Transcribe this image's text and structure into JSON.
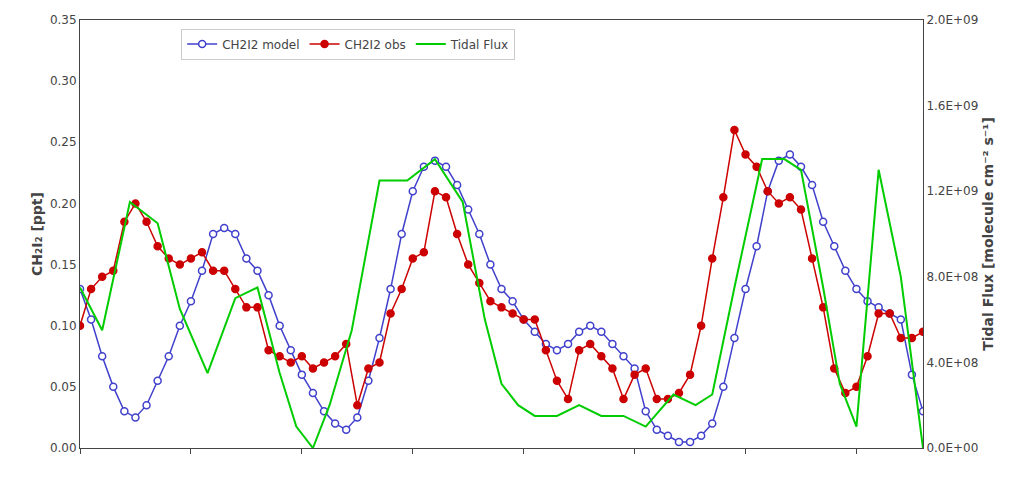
{
  "chart_data": {
    "type": "line",
    "y_label": "CH₂I₂ [ppt]",
    "y2_label": "Tidal Flux [molecule cm⁻² s⁻¹]",
    "xlim": [
      0,
      76
    ],
    "ylim": [
      0.0,
      0.35
    ],
    "yticks": [
      {
        "value": 0.0,
        "label": "0.00"
      },
      {
        "value": 0.05,
        "label": "0.05"
      },
      {
        "value": 0.1,
        "label": "0.10"
      },
      {
        "value": 0.15,
        "label": "0.15"
      },
      {
        "value": 0.2,
        "label": "0.20"
      },
      {
        "value": 0.25,
        "label": "0.25"
      },
      {
        "value": 0.3,
        "label": "0.30"
      },
      {
        "value": 0.35,
        "label": "0.35"
      }
    ],
    "y2lim": [
      0.0,
      2000000000
    ],
    "y2ticks": [
      {
        "value": 0,
        "label": "0.0E+00"
      },
      {
        "value": 400000000,
        "label": "4.0E+08"
      },
      {
        "value": 800000000,
        "label": "8.0E+08"
      },
      {
        "value": 1200000000,
        "label": "1.2E+09"
      },
      {
        "value": 1600000000,
        "label": "1.6E+09"
      },
      {
        "value": 2000000000,
        "label": "2.0E+09"
      }
    ],
    "tick_labels": "y",
    "grid": false,
    "legend": "upper left",
    "series": [
      {
        "name": "CH2I2 model",
        "color": "#4040cc",
        "marker": "circle-open",
        "line_style": "solid",
        "x": [
          0,
          1,
          2,
          3,
          4,
          5,
          6,
          7,
          8,
          9,
          10,
          11,
          12,
          13,
          14,
          15,
          16,
          17,
          18,
          19,
          20,
          21,
          22,
          23,
          24,
          25,
          26,
          27,
          28,
          29,
          30,
          31,
          32,
          33,
          34,
          35,
          36,
          37,
          38,
          39,
          40,
          41,
          42,
          43,
          44,
          45,
          46,
          47,
          48,
          49,
          50,
          51,
          52,
          53,
          54,
          55,
          56,
          57,
          58,
          59,
          60,
          61,
          62,
          63,
          64,
          65,
          66,
          67,
          68,
          69,
          70,
          71,
          72,
          73,
          74,
          75,
          76
        ],
        "values": [
          0.13,
          0.105,
          0.075,
          0.05,
          0.03,
          0.025,
          0.035,
          0.055,
          0.075,
          0.1,
          0.12,
          0.145,
          0.175,
          0.18,
          0.175,
          0.155,
          0.145,
          0.125,
          0.1,
          0.08,
          0.06,
          0.045,
          0.03,
          0.02,
          0.015,
          0.025,
          0.055,
          0.09,
          0.13,
          0.175,
          0.21,
          0.23,
          0.235,
          0.23,
          0.215,
          0.195,
          0.175,
          0.15,
          0.13,
          0.12,
          0.105,
          0.095,
          0.085,
          0.08,
          0.085,
          0.095,
          0.1,
          0.095,
          0.085,
          0.075,
          0.065,
          0.03,
          0.015,
          0.01,
          0.005,
          0.005,
          0.01,
          0.02,
          0.05,
          0.09,
          0.13,
          0.165,
          0.21,
          0.235,
          0.24,
          0.23,
          0.215,
          0.185,
          0.165,
          0.145,
          0.13,
          0.12,
          0.115,
          0.11,
          0.105,
          0.06,
          0.03
        ]
      },
      {
        "name": "CH2I2 obs",
        "color": "#cc0000",
        "marker": "circle",
        "line_style": "solid",
        "x": [
          0,
          1,
          2,
          3,
          4,
          5,
          6,
          7,
          8,
          9,
          10,
          11,
          12,
          13,
          14,
          15,
          16,
          17,
          18,
          19,
          20,
          21,
          22,
          23,
          24,
          25,
          26,
          27,
          28,
          29,
          30,
          31,
          32,
          33,
          34,
          35,
          36,
          37,
          38,
          39,
          40,
          41,
          42,
          43,
          44,
          45,
          46,
          47,
          48,
          49,
          50,
          51,
          52,
          53,
          54,
          55,
          56,
          57,
          58,
          59,
          60,
          61,
          62,
          63,
          64,
          65,
          66,
          67,
          68,
          69,
          70,
          71,
          72,
          73,
          74,
          75,
          76
        ],
        "values": [
          0.1,
          0.13,
          0.14,
          0.145,
          0.185,
          0.2,
          0.185,
          0.165,
          0.155,
          0.15,
          0.155,
          0.16,
          0.145,
          0.145,
          0.13,
          0.115,
          0.115,
          0.08,
          0.075,
          0.07,
          0.075,
          0.065,
          0.07,
          0.075,
          0.085,
          0.035,
          0.065,
          0.07,
          0.11,
          0.13,
          0.155,
          0.16,
          0.21,
          0.205,
          0.175,
          0.15,
          0.135,
          0.12,
          0.115,
          0.11,
          0.105,
          0.105,
          0.08,
          0.055,
          0.04,
          0.08,
          0.085,
          0.075,
          0.065,
          0.04,
          0.06,
          0.065,
          0.04,
          0.04,
          0.045,
          0.06,
          0.1,
          0.155,
          0.205,
          0.26,
          0.24,
          0.23,
          0.21,
          0.2,
          0.205,
          0.195,
          0.155,
          0.115,
          0.065,
          0.045,
          0.05,
          0.075,
          0.11,
          0.11,
          0.09,
          0.09,
          0.095
        ]
      },
      {
        "name": "Tidal Flux",
        "color": "#00cc00",
        "line_style": "solid",
        "axis": "y2",
        "x": [
          0.0,
          2.0,
          4.5,
          7.0,
          9.0,
          11.5,
          14.0,
          16.0,
          18.0,
          19.5,
          21.0,
          22.5,
          24.5,
          27.0,
          29.5,
          32.0,
          34.5,
          36.5,
          38.0,
          39.5,
          41.0,
          43.0,
          45.0,
          47.0,
          49.0,
          51.0,
          53.5,
          55.5,
          57.0,
          59.0,
          61.5,
          63.5,
          65.0,
          67.0,
          68.5,
          70.0,
          72.0,
          74.0,
          76.0
        ],
        "values": [
          750000000,
          550000000,
          1150000000,
          1050000000,
          650000000,
          350000000,
          700000000,
          750000000,
          350000000,
          100000000,
          0,
          200000000,
          550000000,
          1250000000,
          1250000000,
          1350000000,
          1150000000,
          600000000,
          300000000,
          200000000,
          150000000,
          150000000,
          200000000,
          150000000,
          150000000,
          100000000,
          250000000,
          200000000,
          250000000,
          750000000,
          1350000000,
          1350000000,
          1300000000,
          750000000,
          300000000,
          100000000,
          1300000000,
          800000000,
          0
        ]
      }
    ]
  }
}
